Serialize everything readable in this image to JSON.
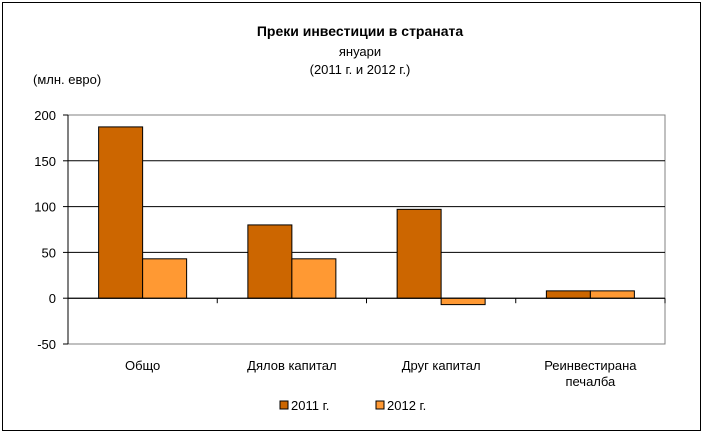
{
  "chart_data": {
    "type": "bar",
    "title": "Преки инвестиции  в страната",
    "subtitle_lines": [
      "януари",
      "(2011 г. и 2012 г.)"
    ],
    "ylabel": "(млн. евро)",
    "xlabel": "",
    "ylim": [
      -50,
      200
    ],
    "yticks": [
      -50,
      0,
      50,
      100,
      150,
      200
    ],
    "ytick_labels": [
      "-50",
      "0",
      "50",
      "100",
      "150",
      "200"
    ],
    "grid": true,
    "legend_position": "bottom",
    "categories": [
      [
        "Общо"
      ],
      [
        "Дялов капитал"
      ],
      [
        "Друг капитал"
      ],
      [
        "Реинвестирана",
        "печалба"
      ]
    ],
    "series": [
      {
        "name": "2011 г.",
        "color": "#CC6600",
        "values": [
          187,
          80,
          97,
          8
        ]
      },
      {
        "name": "2012 г.",
        "color": "#FF9933",
        "values": [
          43,
          43,
          -7,
          8
        ]
      }
    ]
  }
}
